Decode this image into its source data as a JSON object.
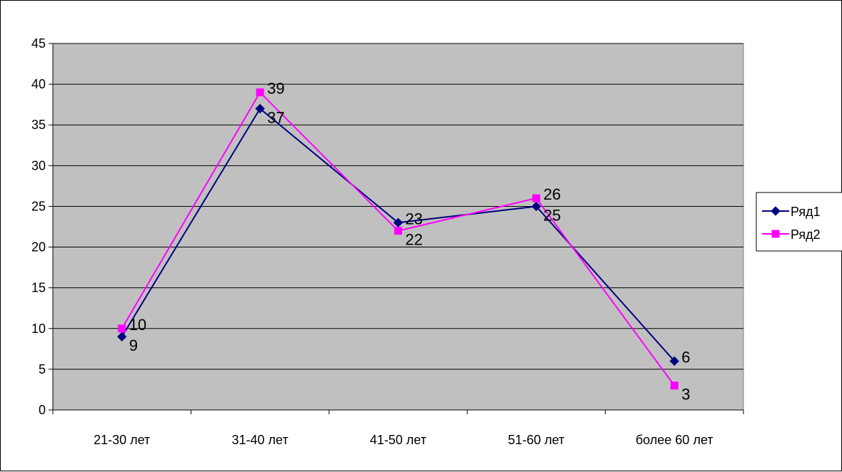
{
  "chart_data": {
    "type": "line",
    "categories": [
      "21-30 лет",
      "31-40 лет",
      "41-50 лет",
      "51-60 лет",
      "более 60 лет"
    ],
    "series": [
      {
        "name": "Ряд1",
        "values": [
          9,
          37,
          23,
          25,
          6
        ],
        "color": "#000080",
        "marker": "diamond"
      },
      {
        "name": "Ряд2",
        "values": [
          10,
          39,
          22,
          26,
          3
        ],
        "color": "#ff00ff",
        "marker": "square"
      }
    ],
    "ylim": [
      0,
      45
    ],
    "yticks": [
      0,
      5,
      10,
      15,
      20,
      25,
      30,
      35,
      40,
      45
    ],
    "grid": true,
    "plot_background": "#c0c0c0",
    "legend_position": "right",
    "data_labels": true
  }
}
